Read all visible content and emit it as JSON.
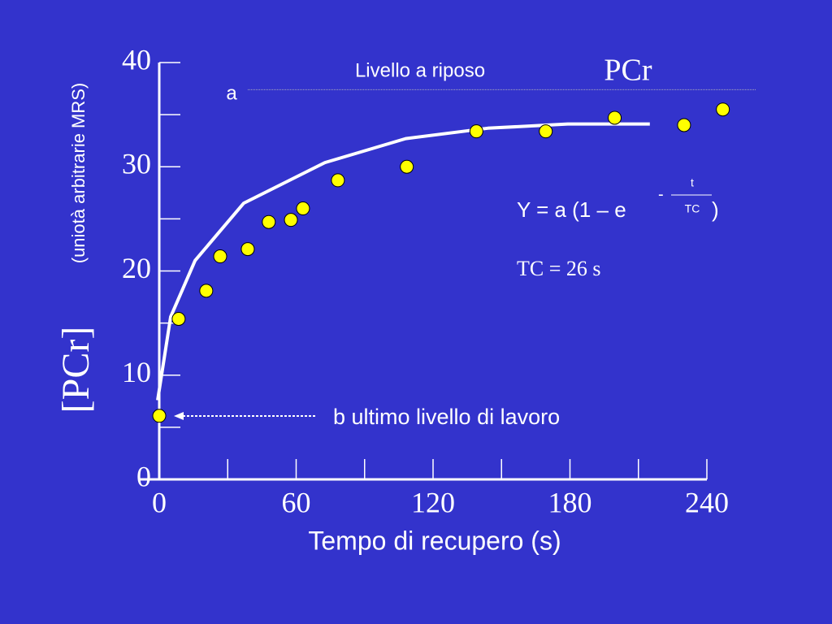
{
  "chart_data": {
    "type": "scatter",
    "title": "PCr",
    "xlabel": "Tempo di recupero (s)",
    "ylabel": "[PCr]",
    "ylabel_sub": "(uniotà arbitrarie MRS)",
    "xlim": [
      0,
      240
    ],
    "ylim": [
      0,
      40
    ],
    "xticks": [
      0,
      60,
      120,
      180,
      240
    ],
    "xminorticks": [
      30,
      90,
      150,
      210
    ],
    "yticks": [
      0,
      10,
      20,
      30,
      40
    ],
    "yminorticks": [
      5,
      15,
      25,
      35
    ],
    "series": [
      {
        "color": "#ffff00",
        "x": [
          0,
          8.5,
          20.6,
          26.7,
          38.8,
          48,
          57.7,
          63,
          78.3,
          108.5,
          139,
          169.4,
          199.6,
          230,
          247
        ],
        "values": [
          6.1,
          15.4,
          18.1,
          21.4,
          22.1,
          24.7,
          24.9,
          26.0,
          28.7,
          30.0,
          33.4,
          33.4,
          34.7,
          34.0,
          35.5
        ]
      },
      {
        "color": "#ffffff",
        "x": [
          -0.7,
          5,
          15.7,
          37,
          72.6,
          108,
          144,
          179,
          215
        ],
        "values": [
          7.6,
          15.6,
          21,
          26.5,
          30.4,
          32.7,
          33.7,
          34.1,
          34.1
        ]
      }
    ],
    "rest_level": 37.4,
    "annotations": {
      "rest": "Livello a riposo",
      "a": "a",
      "b": "b  ultimo livello di lavoro",
      "eq_main": "Y = a (1 – e",
      "eq_minus": "-",
      "eq_num": "t",
      "eq_den": "TC",
      "eq_close": ")",
      "tc": "TC = 26 s"
    }
  }
}
